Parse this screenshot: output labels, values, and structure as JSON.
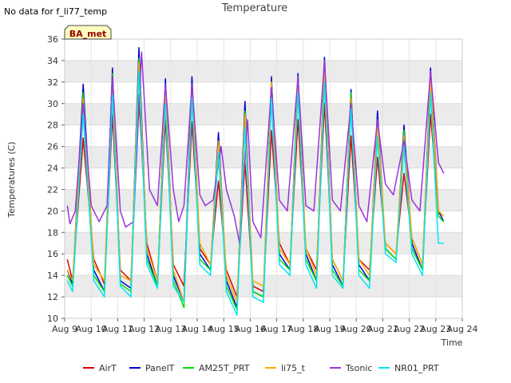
{
  "note": "No data for f_li77_temp",
  "badge": "BA_met",
  "colors": {
    "AirT": "#dd0000",
    "PanelT": "#0000cc",
    "AM25T_PRT": "#00dd00",
    "li75_t": "#ffaa00",
    "Tsonic": "#9933dd",
    "NR01_PRT": "#00e5ee",
    "band": "#ebebeb",
    "badge_fill": "#ffffc0",
    "badge_text": "#990000"
  },
  "chart_data": {
    "type": "line",
    "title": "Temperature",
    "xlabel": "Time",
    "ylabel": "Temperatures (C)",
    "xlim": [
      9,
      24
    ],
    "ylim": [
      10,
      36
    ],
    "x_ticks": [
      9,
      10,
      11,
      12,
      13,
      14,
      15,
      16,
      17,
      18,
      19,
      20,
      21,
      22,
      23,
      24
    ],
    "x_tick_labels": [
      "Aug 9",
      "Aug 10",
      "Aug 11",
      "Aug 12",
      "Aug 13",
      "Aug 14",
      "Aug 15",
      "Aug 16",
      "Aug 17",
      "Aug 18",
      "Aug 19",
      "Aug 20",
      "Aug 21",
      "Aug 22",
      "Aug 23",
      "Aug 24"
    ],
    "y_ticks": [
      10,
      12,
      14,
      16,
      18,
      20,
      22,
      24,
      26,
      28,
      30,
      32,
      34,
      36
    ],
    "legend_position": "bottom",
    "series": [
      {
        "name": "AirT",
        "x": [
          9.1,
          9.3,
          9.7,
          10.1,
          10.5,
          10.8,
          11.1,
          11.5,
          11.8,
          12.1,
          12.5,
          12.8,
          13.1,
          13.5,
          13.8,
          14.1,
          14.5,
          14.8,
          15.1,
          15.5,
          15.8,
          16.1,
          16.5,
          16.8,
          17.1,
          17.5,
          17.8,
          18.1,
          18.5,
          18.8,
          19.1,
          19.5,
          19.8,
          20.1,
          20.5,
          20.8,
          21.1,
          21.5,
          21.8,
          22.1,
          22.5,
          22.8,
          23.1,
          23.3
        ],
        "y": [
          15.5,
          13.5,
          26.8,
          15.5,
          13.2,
          29.0,
          14.5,
          13.5,
          30.8,
          17.0,
          13.5,
          28.5,
          15.0,
          13.0,
          28.3,
          16.5,
          15.0,
          22.8,
          14.5,
          12.0,
          24.5,
          13.0,
          12.5,
          27.5,
          17.0,
          15.0,
          28.5,
          16.5,
          14.5,
          30.0,
          15.5,
          13.5,
          27.0,
          15.5,
          14.5,
          25.0,
          17.0,
          16.0,
          23.5,
          17.5,
          15.0,
          29.0,
          20.0,
          19.5
        ]
      },
      {
        "name": "PanelT",
        "x": [
          9.1,
          9.3,
          9.7,
          10.1,
          10.5,
          10.8,
          11.1,
          11.5,
          11.8,
          12.1,
          12.5,
          12.8,
          13.1,
          13.5,
          13.8,
          14.1,
          14.5,
          14.8,
          15.1,
          15.5,
          15.8,
          16.1,
          16.5,
          16.8,
          17.1,
          17.5,
          17.8,
          18.1,
          18.5,
          18.8,
          19.1,
          19.5,
          19.8,
          20.1,
          20.5,
          20.8,
          21.1,
          21.5,
          21.8,
          22.1,
          22.5,
          22.8,
          23.1,
          23.3
        ],
        "y": [
          14.5,
          13.2,
          31.8,
          14.5,
          12.5,
          33.3,
          13.5,
          12.8,
          35.2,
          16.0,
          13.0,
          32.3,
          14.0,
          11.5,
          32.5,
          16.0,
          14.5,
          27.3,
          13.5,
          11.0,
          30.2,
          12.5,
          12.0,
          32.5,
          16.0,
          14.5,
          32.8,
          16.0,
          13.5,
          34.3,
          15.0,
          13.0,
          31.3,
          15.0,
          13.5,
          29.3,
          16.5,
          15.5,
          28.0,
          17.0,
          14.5,
          33.3,
          20.0,
          19.0
        ]
      },
      {
        "name": "AM25T_PRT",
        "x": [
          9.1,
          9.3,
          9.7,
          10.1,
          10.5,
          10.8,
          11.1,
          11.5,
          11.8,
          12.1,
          12.5,
          12.8,
          13.1,
          13.5,
          13.8,
          14.1,
          14.5,
          14.8,
          15.1,
          15.5,
          15.8,
          16.1,
          16.5,
          16.8,
          17.1,
          17.5,
          17.8,
          18.1,
          18.5,
          18.8,
          19.1,
          19.5,
          19.8,
          20.1,
          20.5,
          20.8,
          21.1,
          21.5,
          21.8,
          22.1,
          22.5,
          22.8,
          23.1,
          23.3
        ],
        "y": [
          14.0,
          13.0,
          31.0,
          14.0,
          12.5,
          32.8,
          13.2,
          12.5,
          34.2,
          15.5,
          13.0,
          31.8,
          13.5,
          11.0,
          31.5,
          15.5,
          14.5,
          26.5,
          13.0,
          10.8,
          29.3,
          12.5,
          12.0,
          32.0,
          15.5,
          14.5,
          32.5,
          15.5,
          13.5,
          33.5,
          14.5,
          13.0,
          31.0,
          14.5,
          13.5,
          28.5,
          16.5,
          15.5,
          27.5,
          16.5,
          14.5,
          32.5,
          19.5,
          19.0
        ]
      },
      {
        "name": "li75_t",
        "x": [
          9.1,
          9.3,
          9.7,
          10.1,
          10.5,
          10.8,
          11.1,
          11.5,
          11.8,
          12.1,
          12.5,
          12.8,
          13.1,
          13.5,
          13.8,
          14.1,
          14.5,
          14.8,
          15.1,
          15.5,
          15.8,
          16.1,
          16.5,
          16.8,
          17.1,
          17.5,
          17.8,
          18.1,
          18.5,
          18.8,
          19.1,
          19.5,
          19.8,
          20.1,
          20.5,
          20.8,
          21.1,
          21.5,
          21.8,
          22.1,
          22.5,
          22.8,
          23.1,
          23.3
        ],
        "y": [
          14.5,
          13.5,
          30.5,
          15.0,
          13.5,
          32.5,
          14.0,
          13.5,
          33.8,
          16.5,
          13.5,
          31.5,
          14.5,
          11.5,
          31.5,
          17.0,
          15.0,
          26.5,
          14.0,
          11.5,
          29.0,
          13.5,
          13.0,
          32.0,
          16.5,
          15.0,
          32.0,
          16.5,
          14.0,
          33.5,
          15.5,
          13.5,
          30.5,
          15.5,
          14.0,
          28.5,
          17.0,
          16.0,
          27.0,
          17.5,
          15.0,
          32.5,
          20.0,
          19.5
        ]
      },
      {
        "name": "Tsonic",
        "x": [
          9.1,
          9.2,
          9.4,
          9.7,
          10.0,
          10.3,
          10.6,
          10.8,
          11.1,
          11.3,
          11.6,
          11.9,
          12.2,
          12.5,
          12.8,
          13.1,
          13.3,
          13.5,
          13.8,
          14.1,
          14.3,
          14.6,
          14.9,
          15.1,
          15.4,
          15.6,
          15.9,
          16.1,
          16.4,
          16.8,
          17.1,
          17.4,
          17.8,
          18.1,
          18.4,
          18.8,
          19.1,
          19.4,
          19.8,
          20.1,
          20.4,
          20.8,
          21.1,
          21.4,
          21.8,
          22.1,
          22.4,
          22.8,
          23.1,
          23.3
        ],
        "y": [
          20.5,
          18.8,
          20.0,
          30.0,
          20.5,
          19.0,
          20.5,
          32.5,
          20.0,
          18.5,
          19.0,
          34.8,
          22.0,
          20.5,
          31.8,
          22.0,
          19.0,
          20.5,
          31.8,
          21.5,
          20.5,
          21.0,
          26.0,
          22.0,
          19.5,
          17.0,
          28.5,
          19.0,
          17.5,
          31.5,
          21.0,
          20.0,
          32.5,
          20.5,
          20.0,
          34.0,
          21.0,
          20.0,
          30.0,
          20.5,
          19.0,
          28.5,
          22.5,
          21.5,
          26.5,
          21.0,
          20.0,
          33.0,
          24.5,
          23.5
        ]
      },
      {
        "name": "NR01_PRT",
        "x": [
          9.1,
          9.3,
          9.7,
          10.1,
          10.5,
          10.8,
          11.1,
          11.5,
          11.8,
          12.1,
          12.5,
          12.8,
          13.1,
          13.5,
          13.8,
          14.1,
          14.5,
          14.8,
          15.1,
          15.5,
          15.8,
          16.1,
          16.5,
          16.8,
          17.1,
          17.5,
          17.8,
          18.1,
          18.5,
          18.8,
          19.1,
          19.5,
          19.8,
          20.1,
          20.5,
          20.8,
          21.1,
          21.5,
          21.8,
          22.1,
          22.5,
          22.8,
          23.1,
          23.3
        ],
        "y": [
          13.5,
          12.5,
          29.0,
          13.5,
          12.0,
          30.8,
          13.0,
          12.0,
          33.0,
          15.0,
          12.8,
          30.0,
          13.0,
          11.5,
          30.5,
          15.0,
          14.0,
          25.5,
          12.5,
          10.3,
          27.8,
          12.0,
          11.5,
          30.5,
          15.0,
          14.0,
          31.0,
          15.0,
          12.8,
          32.0,
          14.0,
          12.8,
          29.5,
          14.0,
          12.8,
          27.0,
          16.0,
          15.2,
          26.0,
          16.0,
          14.0,
          31.0,
          17.0,
          17.0
        ]
      }
    ]
  }
}
